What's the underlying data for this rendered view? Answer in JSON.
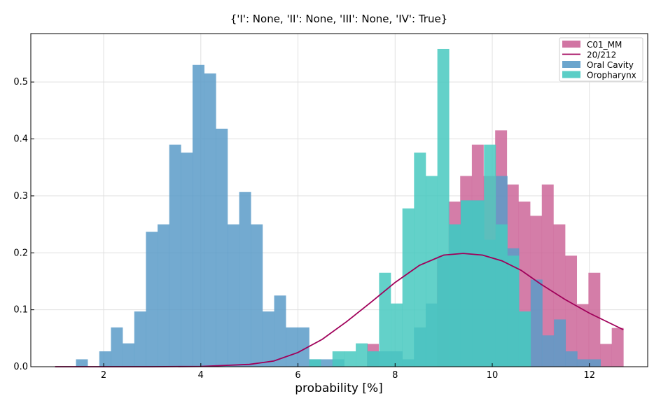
{
  "chart_data": {
    "type": "bar",
    "title": "{'I': None, 'II': None, 'III': None, 'IV': True}",
    "xlabel": "probability [%]",
    "ylabel": "",
    "xlim": [
      0.5,
      13.2
    ],
    "ylim": [
      0,
      0.585
    ],
    "x_ticks": [
      2,
      4,
      6,
      8,
      10,
      12
    ],
    "y_ticks": [
      0.0,
      0.1,
      0.2,
      0.3,
      0.4,
      0.5
    ],
    "grid": true,
    "legend_position": "top-right",
    "bin_width": 0.24,
    "series": [
      {
        "name": "C01_MM",
        "kind": "histogram",
        "color": "#cc6699",
        "bins": [
          [
            7.42,
            0.04
          ],
          [
            7.66,
            0.0
          ],
          [
            7.9,
            0.0
          ],
          [
            8.14,
            0.0
          ],
          [
            8.38,
            0.0
          ],
          [
            8.62,
            0.0
          ],
          [
            8.86,
            0.19
          ],
          [
            9.1,
            0.29
          ],
          [
            9.34,
            0.335
          ],
          [
            9.58,
            0.39
          ],
          [
            9.82,
            0.335
          ],
          [
            10.06,
            0.415
          ],
          [
            10.3,
            0.32
          ],
          [
            10.54,
            0.29
          ],
          [
            10.78,
            0.265
          ],
          [
            11.02,
            0.32
          ],
          [
            11.26,
            0.25
          ],
          [
            11.5,
            0.195
          ],
          [
            11.74,
            0.11
          ],
          [
            11.98,
            0.165
          ],
          [
            12.22,
            0.04
          ],
          [
            12.46,
            0.068
          ]
        ]
      },
      {
        "name": "20/212",
        "kind": "line",
        "color": "#a0005a",
        "x": [
          1.0,
          2.0,
          3.0,
          4.0,
          5.0,
          5.5,
          6.0,
          6.5,
          7.0,
          7.5,
          8.0,
          8.5,
          9.0,
          9.4,
          9.8,
          10.2,
          10.6,
          11.0,
          11.5,
          12.0,
          12.7
        ],
        "y": [
          0.0,
          0.0,
          0.0,
          0.0005,
          0.004,
          0.01,
          0.025,
          0.048,
          0.079,
          0.113,
          0.148,
          0.178,
          0.196,
          0.199,
          0.196,
          0.186,
          0.169,
          0.145,
          0.118,
          0.094,
          0.065
        ]
      },
      {
        "name": "Oral Cavity",
        "kind": "histogram",
        "color": "#5b9bc8",
        "bins": [
          [
            1.43,
            0.013
          ],
          [
            1.67,
            0.0
          ],
          [
            1.91,
            0.027
          ],
          [
            2.15,
            0.069
          ],
          [
            2.39,
            0.041
          ],
          [
            2.63,
            0.097
          ],
          [
            2.87,
            0.237
          ],
          [
            3.11,
            0.25
          ],
          [
            3.35,
            0.39
          ],
          [
            3.59,
            0.376
          ],
          [
            3.83,
            0.53
          ],
          [
            4.07,
            0.515
          ],
          [
            4.31,
            0.418
          ],
          [
            4.55,
            0.25
          ],
          [
            4.79,
            0.307
          ],
          [
            5.03,
            0.25
          ],
          [
            5.27,
            0.097
          ],
          [
            5.51,
            0.125
          ],
          [
            5.75,
            0.069
          ],
          [
            5.99,
            0.069
          ],
          [
            6.23,
            0.013
          ],
          [
            6.47,
            0.013
          ],
          [
            6.71,
            0.013
          ],
          [
            6.95,
            0.0
          ],
          [
            7.19,
            0.0
          ],
          [
            7.43,
            0.027
          ],
          [
            7.67,
            0.027
          ],
          [
            7.91,
            0.027
          ],
          [
            8.15,
            0.013
          ],
          [
            8.39,
            0.069
          ],
          [
            8.63,
            0.111
          ],
          [
            8.87,
            0.195
          ],
          [
            9.11,
            0.25
          ],
          [
            9.35,
            0.292
          ],
          [
            9.59,
            0.292
          ],
          [
            9.83,
            0.223
          ],
          [
            10.07,
            0.335
          ],
          [
            10.31,
            0.208
          ],
          [
            10.55,
            0.097
          ],
          [
            10.79,
            0.153
          ],
          [
            11.03,
            0.055
          ],
          [
            11.27,
            0.083
          ],
          [
            11.51,
            0.027
          ],
          [
            11.75,
            0.013
          ],
          [
            11.99,
            0.013
          ]
        ]
      },
      {
        "name": "Oropharynx",
        "kind": "histogram",
        "color": "#48c9c0",
        "bins": [
          [
            6.23,
            0.013
          ],
          [
            6.47,
            0.0
          ],
          [
            6.71,
            0.027
          ],
          [
            6.95,
            0.027
          ],
          [
            7.19,
            0.041
          ],
          [
            7.43,
            0.027
          ],
          [
            7.67,
            0.165
          ],
          [
            7.91,
            0.111
          ],
          [
            8.15,
            0.278
          ],
          [
            8.39,
            0.376
          ],
          [
            8.63,
            0.335
          ],
          [
            8.87,
            0.558
          ],
          [
            9.11,
            0.25
          ],
          [
            9.35,
            0.292
          ],
          [
            9.59,
            0.292
          ],
          [
            9.83,
            0.39
          ],
          [
            10.07,
            0.25
          ],
          [
            10.31,
            0.195
          ],
          [
            10.55,
            0.097
          ],
          [
            10.79,
            0.0
          ]
        ]
      }
    ]
  }
}
